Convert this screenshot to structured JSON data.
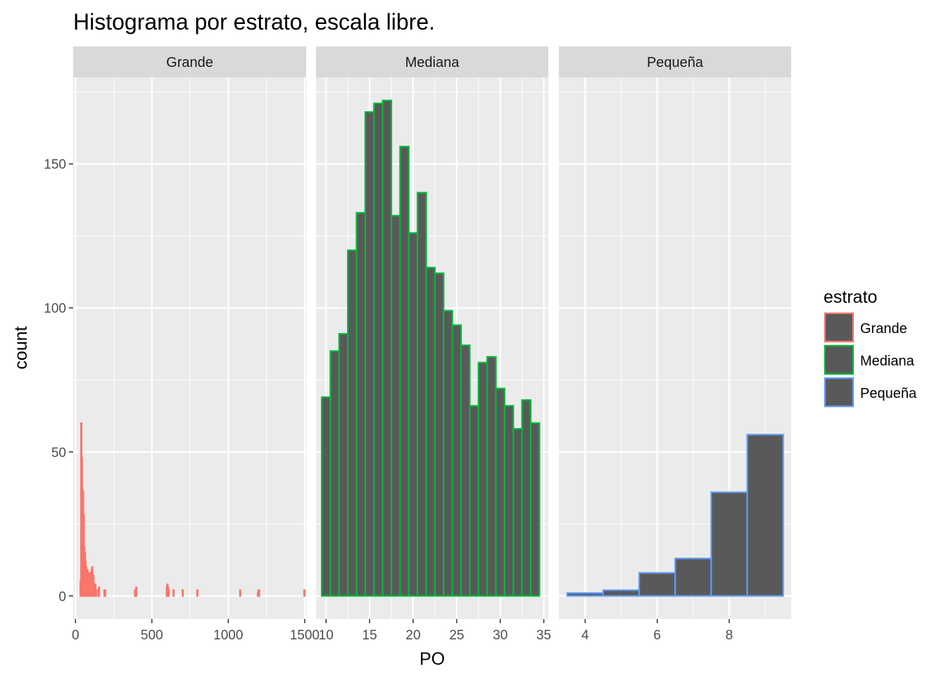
{
  "chart_data": {
    "type": "bar",
    "title": "Histograma por estrato, escala libre.",
    "xlabel": "PO",
    "ylabel": "count",
    "ylim": [
      -8,
      180
    ],
    "yticks": [
      0,
      50,
      100,
      150
    ],
    "grid": true,
    "legend": {
      "title": "estrato",
      "placement": "right",
      "entries": [
        {
          "name": "Grande",
          "color": "#f8766d"
        },
        {
          "name": "Mediana",
          "color": "#00ba38"
        },
        {
          "name": "Pequeña",
          "color": "#619cff"
        }
      ]
    },
    "bar_fill": "#595959",
    "panel_bg": "#ebebeb",
    "strip_bg": "#d9d9d9",
    "panels": [
      {
        "name": "Grande",
        "color": "#f8766d",
        "xlim": [
          -15,
          1510
        ],
        "xticks": [
          0,
          500,
          1000,
          1500
        ],
        "binwidth": 4,
        "x": [
          34,
          38,
          42,
          46,
          50,
          54,
          58,
          62,
          66,
          70,
          74,
          78,
          82,
          86,
          90,
          94,
          98,
          102,
          106,
          110,
          114,
          118,
          122,
          126,
          130,
          134,
          150,
          154,
          190,
          194,
          390,
          394,
          398,
          598,
          602,
          606,
          610,
          642,
          702,
          798,
          1078,
          1194,
          1198,
          1202,
          1498
        ],
        "values": [
          5,
          60,
          48,
          37,
          36,
          28,
          17,
          15,
          12,
          10,
          7,
          9,
          8,
          7,
          6,
          8,
          5,
          5,
          9,
          10,
          4,
          7,
          3,
          4,
          4,
          2,
          2,
          3,
          2,
          2,
          2,
          1,
          3,
          3,
          4,
          3,
          2,
          2,
          2,
          2,
          2,
          1,
          2,
          2,
          2
        ]
      },
      {
        "name": "Mediana",
        "color": "#00ba38",
        "xlim": [
          8.85,
          35.52
        ],
        "xticks": [
          10,
          15,
          20,
          25,
          30,
          35
        ],
        "binwidth": 1,
        "x": [
          10,
          11,
          12,
          13,
          14,
          15,
          16,
          17,
          18,
          19,
          20,
          21,
          22,
          23,
          24,
          25,
          26,
          27,
          28,
          29,
          30,
          31,
          32,
          33,
          34
        ],
        "values": [
          69,
          85,
          91,
          120,
          133,
          168,
          171,
          172,
          132,
          156,
          126,
          140,
          114,
          112,
          99,
          94,
          87,
          66,
          81,
          83,
          72,
          66,
          58,
          68,
          60
        ]
      },
      {
        "name": "Pequeña",
        "color": "#619cff",
        "xlim": [
          3.27,
          9.72
        ],
        "xticks": [
          4,
          6,
          8
        ],
        "binwidth": 1,
        "x": [
          4,
          5,
          6,
          7,
          8,
          9
        ],
        "values": [
          1,
          2,
          8,
          13,
          36,
          56
        ]
      }
    ]
  }
}
